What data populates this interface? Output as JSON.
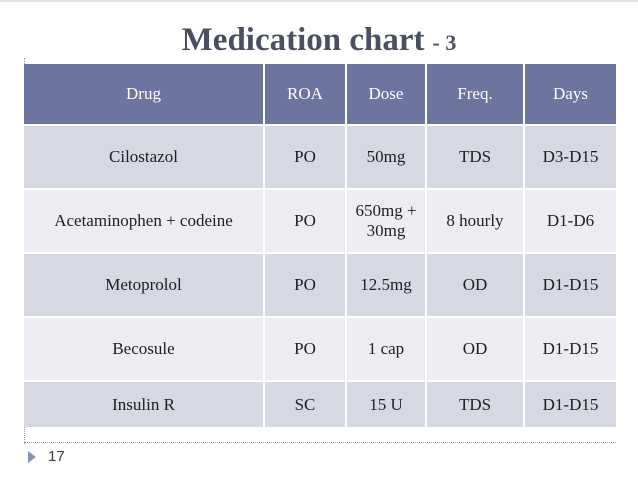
{
  "slide": {
    "title": "Medication chart",
    "title_suffix": "- 3",
    "page_number": "17"
  },
  "table": {
    "headers": [
      "Drug",
      "ROA",
      "Dose",
      "Freq.",
      "Days"
    ],
    "rows": [
      {
        "drug": "Cilostazol",
        "roa": "PO",
        "dose": "50mg",
        "freq": "TDS",
        "days": "D3-D15"
      },
      {
        "drug": "Acetaminophen + codeine",
        "roa": "PO",
        "dose": "650mg + 30mg",
        "freq": "8 hourly",
        "days": "D1-D6"
      },
      {
        "drug": "Metoprolol",
        "roa": "PO",
        "dose": "12.5mg",
        "freq": "OD",
        "days": "D1-D15"
      },
      {
        "drug": "Becosule",
        "roa": "PO",
        "dose": "1 cap",
        "freq": "OD",
        "days": "D1-D15"
      },
      {
        "drug": "Insulin R",
        "roa": "SC",
        "dose": "15 U",
        "freq": "TDS",
        "days": "D1-D15"
      }
    ]
  },
  "colors": {
    "header_bg": "#6c74a0",
    "row_dark": "#d6d9e4",
    "row_light": "#ecedf2",
    "title": "#4a4f62"
  }
}
